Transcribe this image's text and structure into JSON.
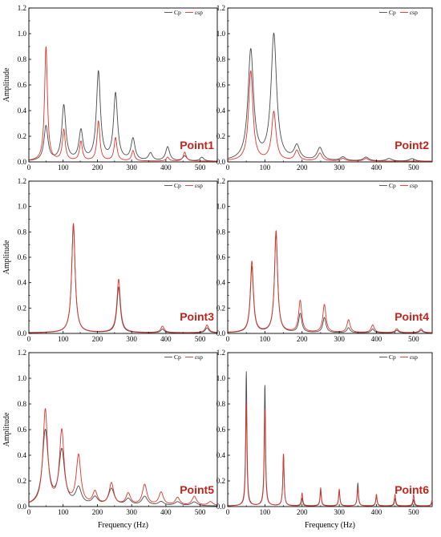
{
  "colors": {
    "cp": "#4a4a4a",
    "sp": "#e0342a",
    "label": "#c0241c",
    "frame": "#000000"
  },
  "axis_labels": {
    "ylabel": "Amplitude",
    "xlabel": "Frequency (Hz)"
  },
  "legend": {
    "series_a": "Cp",
    "series_b": "εsp"
  },
  "chart_data": [
    {
      "type": "line",
      "label": "Point1",
      "xlim": [
        0,
        550
      ],
      "ylim": [
        0,
        1.2
      ],
      "xticks": [
        0,
        100,
        200,
        300,
        400,
        500
      ],
      "yticks": [
        0.0,
        0.2,
        0.4,
        0.6,
        0.8,
        1.0,
        1.2
      ],
      "series": [
        {
          "name": "Cp",
          "peaks": [
            [
              50,
              0.27
            ],
            [
              102,
              0.43
            ],
            [
              152,
              0.23
            ],
            [
              203,
              0.69
            ],
            [
              253,
              0.52
            ],
            [
              304,
              0.17
            ],
            [
              355,
              0.06
            ],
            [
              405,
              0.11
            ],
            [
              455,
              0.04
            ],
            [
              505,
              0.03
            ]
          ]
        },
        {
          "name": "εsp",
          "peaks": [
            [
              50,
              0.89
            ],
            [
              102,
              0.24
            ],
            [
              152,
              0.15
            ],
            [
              203,
              0.31
            ],
            [
              253,
              0.18
            ],
            [
              304,
              0.08
            ],
            [
              405,
              0.03
            ],
            [
              455,
              0.07
            ]
          ]
        }
      ]
    },
    {
      "type": "line",
      "label": "Point2",
      "xlim": [
        0,
        550
      ],
      "ylim": [
        0,
        1.2
      ],
      "xticks": [
        0,
        100,
        200,
        300,
        400,
        500
      ],
      "yticks": [
        0.0,
        0.2,
        0.4,
        0.6,
        0.8,
        1.0,
        1.2
      ],
      "series": [
        {
          "name": "Cp",
          "peaks": [
            [
              62,
              0.86
            ],
            [
              124,
              0.98
            ],
            [
              186,
              0.11
            ],
            [
              248,
              0.1
            ],
            [
              310,
              0.03
            ],
            [
              372,
              0.03
            ],
            [
              434,
              0.02
            ],
            [
              496,
              0.02
            ]
          ]
        },
        {
          "name": "εsp",
          "peaks": [
            [
              62,
              0.7
            ],
            [
              124,
              0.38
            ],
            [
              186,
              0.08
            ],
            [
              248,
              0.06
            ],
            [
              310,
              0.02
            ],
            [
              372,
              0.02
            ]
          ]
        }
      ]
    },
    {
      "type": "line",
      "label": "Point3",
      "xlim": [
        0,
        550
      ],
      "ylim": [
        0,
        1.2
      ],
      "xticks": [
        0,
        100,
        200,
        300,
        400,
        500
      ],
      "yticks": [
        0.0,
        0.2,
        0.4,
        0.6,
        0.8,
        1.0,
        1.2
      ],
      "series": [
        {
          "name": "Cp",
          "peaks": [
            [
              130,
              0.85
            ],
            [
              262,
              0.36
            ],
            [
              390,
              0.03
            ],
            [
              520,
              0.04
            ]
          ]
        },
        {
          "name": "εsp",
          "peaks": [
            [
              130,
              0.86
            ],
            [
              262,
              0.42
            ],
            [
              390,
              0.05
            ],
            [
              520,
              0.06
            ]
          ]
        }
      ]
    },
    {
      "type": "line",
      "label": "Point4",
      "xlim": [
        0,
        550
      ],
      "ylim": [
        0,
        1.2
      ],
      "xticks": [
        0,
        100,
        200,
        300,
        400,
        500
      ],
      "yticks": [
        0.0,
        0.2,
        0.4,
        0.6,
        0.8,
        1.0,
        1.2
      ],
      "series": [
        {
          "name": "Cp",
          "peaks": [
            [
              65,
              0.52
            ],
            [
              130,
              0.78
            ],
            [
              195,
              0.15
            ],
            [
              260,
              0.12
            ],
            [
              325,
              0.04
            ],
            [
              390,
              0.03
            ],
            [
              455,
              0.02
            ],
            [
              520,
              0.02
            ]
          ]
        },
        {
          "name": "εsp",
          "peaks": [
            [
              65,
              0.56
            ],
            [
              130,
              0.8
            ],
            [
              195,
              0.25
            ],
            [
              260,
              0.22
            ],
            [
              325,
              0.1
            ],
            [
              390,
              0.06
            ],
            [
              455,
              0.03
            ],
            [
              520,
              0.03
            ]
          ]
        }
      ]
    },
    {
      "type": "line",
      "label": "Point5",
      "xlim": [
        0,
        550
      ],
      "ylim": [
        0,
        1.2
      ],
      "xticks": [
        0,
        100,
        200,
        300,
        400,
        500
      ],
      "yticks": [
        0.0,
        0.2,
        0.4,
        0.6,
        0.8,
        1.0,
        1.2
      ],
      "series": [
        {
          "name": "Cp",
          "peaks": [
            [
              48,
              0.58
            ],
            [
              96,
              0.42
            ],
            [
              145,
              0.13
            ],
            [
              193,
              0.06
            ],
            [
              241,
              0.13
            ],
            [
              290,
              0.05
            ],
            [
              338,
              0.07
            ],
            [
              386,
              0.03
            ],
            [
              434,
              0.03
            ],
            [
              483,
              0.03
            ]
          ]
        },
        {
          "name": "εsp",
          "peaks": [
            [
              48,
              0.74
            ],
            [
              96,
              0.57
            ],
            [
              145,
              0.38
            ],
            [
              193,
              0.1
            ],
            [
              241,
              0.17
            ],
            [
              290,
              0.09
            ],
            [
              338,
              0.16
            ],
            [
              386,
              0.1
            ],
            [
              434,
              0.06
            ],
            [
              483,
              0.07
            ],
            [
              530,
              0.03
            ]
          ]
        }
      ]
    },
    {
      "type": "line",
      "label": "Point6",
      "xlim": [
        0,
        550
      ],
      "ylim": [
        0,
        1.2
      ],
      "xticks": [
        0,
        100,
        200,
        300,
        400,
        500
      ],
      "yticks": [
        0.0,
        0.2,
        0.4,
        0.6,
        0.8,
        1.0,
        1.2
      ],
      "series": [
        {
          "name": "Cp",
          "peaks": [
            [
              50,
              1.05
            ],
            [
              100,
              0.95
            ],
            [
              150,
              0.4
            ],
            [
              200,
              0.06
            ],
            [
              250,
              0.12
            ],
            [
              300,
              0.12
            ],
            [
              350,
              0.18
            ],
            [
              400,
              0.08
            ],
            [
              450,
              0.06
            ],
            [
              500,
              0.05
            ],
            [
              550,
              0.04
            ]
          ]
        },
        {
          "name": "εsp",
          "peaks": [
            [
              50,
              0.8
            ],
            [
              100,
              0.76
            ],
            [
              150,
              0.41
            ],
            [
              200,
              0.1
            ],
            [
              250,
              0.14
            ],
            [
              300,
              0.13
            ],
            [
              350,
              0.14
            ],
            [
              400,
              0.09
            ],
            [
              450,
              0.09
            ],
            [
              500,
              0.09
            ],
            [
              550,
              0.05
            ]
          ]
        }
      ]
    }
  ]
}
